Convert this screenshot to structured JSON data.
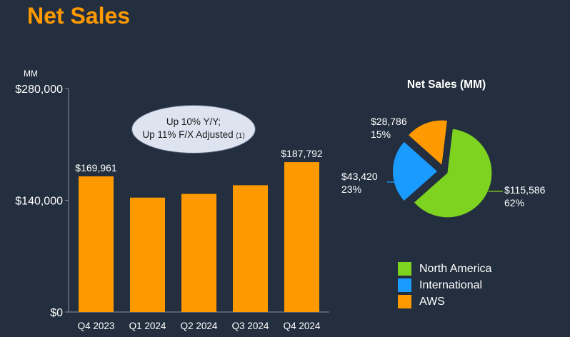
{
  "title": "Net Sales",
  "chart_data": [
    {
      "type": "bar",
      "title": "",
      "ylabel": "MM",
      "categories": [
        "Q4 2023",
        "Q1 2024",
        "Q2 2024",
        "Q3 2024",
        "Q4 2024"
      ],
      "values": [
        169961,
        143313,
        147977,
        158877,
        187792
      ],
      "data_labels": [
        "$169,961",
        "",
        "",
        "",
        "$187,792"
      ],
      "yticks": [
        0,
        140000,
        280000
      ],
      "ytick_labels": [
        "$0",
        "$140,000",
        "$280,000"
      ],
      "ylim": [
        0,
        280000
      ],
      "color": "#ff9900",
      "annotation": {
        "line1": "Up 10% Y/Y;",
        "line2": "Up 11% F/X Adjusted",
        "footnote": "(1)"
      }
    },
    {
      "type": "pie",
      "title": "Net Sales (MM)",
      "slices": [
        {
          "name": "North America",
          "value": 115586,
          "value_label": "$115,586",
          "percent_label": "62%",
          "color": "#7ed321"
        },
        {
          "name": "International",
          "value": 43420,
          "value_label": "$43,420",
          "percent_label": "23%",
          "color": "#1a9bff"
        },
        {
          "name": "AWS",
          "value": 28786,
          "value_label": "$28,786",
          "percent_label": "15%",
          "color": "#ff9900"
        }
      ],
      "legend_position": "bottom"
    }
  ]
}
